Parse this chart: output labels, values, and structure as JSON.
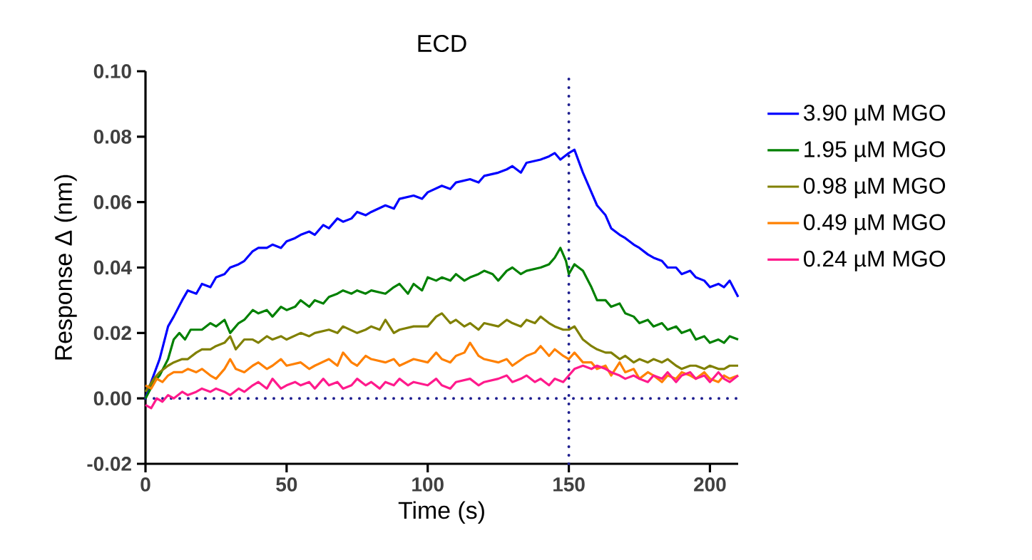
{
  "chart_data": {
    "type": "line",
    "title": "ECD",
    "xlabel": "Time (s)",
    "ylabel": "Response Δ (nm)",
    "xlim": [
      0,
      210
    ],
    "xticks": [
      0,
      50,
      100,
      150,
      200
    ],
    "ylim": [
      -0.02,
      0.1
    ],
    "yticks": [
      {
        "value": -0.02,
        "label": "-0.02"
      },
      {
        "value": 0,
        "label": "0.00"
      },
      {
        "value": 0.02,
        "label": "0.02"
      },
      {
        "value": 0.04,
        "label": "0.04"
      },
      {
        "value": 0.06,
        "label": "0.06"
      },
      {
        "value": 0.08,
        "label": "0.08"
      },
      {
        "value": 0.1,
        "label": "0.10"
      }
    ],
    "grid": false,
    "legend": "right",
    "marker": "none",
    "line_style": "solid",
    "ref_lines": [
      {
        "axis": "x",
        "value": 150,
        "color": "#1f1f8f",
        "line_style": "dotted"
      },
      {
        "axis": "y",
        "value": 0,
        "color": "#1f1f8f",
        "line_style": "dotted"
      }
    ],
    "series": [
      {
        "name": "3.90 µM MGO",
        "color": "#0000ff",
        "x": [
          0,
          2,
          5,
          8,
          10,
          13,
          15,
          18,
          20,
          23,
          25,
          28,
          30,
          33,
          35,
          38,
          40,
          43,
          45,
          48,
          50,
          53,
          55,
          58,
          60,
          63,
          65,
          68,
          70,
          73,
          75,
          78,
          80,
          85,
          88,
          90,
          95,
          98,
          100,
          105,
          108,
          110,
          115,
          118,
          120,
          125,
          128,
          130,
          133,
          135,
          140,
          143,
          145,
          147,
          150,
          152,
          155,
          158,
          160,
          163,
          165,
          168,
          170,
          173,
          175,
          178,
          180,
          183,
          185,
          188,
          190,
          193,
          195,
          198,
          200,
          203,
          205,
          207,
          210
        ],
        "values": [
          0.0,
          0.005,
          0.012,
          0.022,
          0.025,
          0.03,
          0.033,
          0.032,
          0.035,
          0.034,
          0.037,
          0.038,
          0.04,
          0.041,
          0.042,
          0.045,
          0.046,
          0.046,
          0.047,
          0.046,
          0.048,
          0.049,
          0.05,
          0.051,
          0.05,
          0.053,
          0.052,
          0.055,
          0.054,
          0.055,
          0.057,
          0.056,
          0.057,
          0.059,
          0.058,
          0.061,
          0.062,
          0.061,
          0.063,
          0.065,
          0.064,
          0.066,
          0.067,
          0.066,
          0.068,
          0.069,
          0.07,
          0.071,
          0.069,
          0.072,
          0.073,
          0.074,
          0.075,
          0.073,
          0.075,
          0.076,
          0.069,
          0.063,
          0.059,
          0.056,
          0.052,
          0.05,
          0.049,
          0.047,
          0.046,
          0.044,
          0.043,
          0.042,
          0.04,
          0.04,
          0.038,
          0.039,
          0.037,
          0.036,
          0.034,
          0.035,
          0.034,
          0.036,
          0.031
        ]
      },
      {
        "name": "1.95 µM MGO",
        "color": "#008000",
        "x": [
          0,
          3,
          5,
          8,
          10,
          12,
          14,
          16,
          20,
          23,
          25,
          28,
          30,
          33,
          35,
          38,
          40,
          43,
          45,
          48,
          50,
          53,
          55,
          58,
          60,
          63,
          65,
          68,
          70,
          73,
          75,
          78,
          80,
          85,
          88,
          90,
          93,
          95,
          98,
          100,
          103,
          105,
          108,
          110,
          113,
          115,
          118,
          120,
          123,
          125,
          128,
          130,
          133,
          135,
          140,
          143,
          145,
          147,
          149,
          150,
          152,
          155,
          158,
          160,
          163,
          165,
          168,
          170,
          173,
          175,
          178,
          180,
          183,
          185,
          188,
          190,
          193,
          195,
          198,
          200,
          203,
          205,
          207,
          210
        ],
        "values": [
          0.0,
          0.005,
          0.007,
          0.012,
          0.018,
          0.02,
          0.018,
          0.021,
          0.021,
          0.023,
          0.022,
          0.024,
          0.02,
          0.023,
          0.024,
          0.027,
          0.026,
          0.027,
          0.025,
          0.028,
          0.027,
          0.028,
          0.03,
          0.028,
          0.03,
          0.029,
          0.031,
          0.032,
          0.033,
          0.032,
          0.033,
          0.032,
          0.033,
          0.032,
          0.034,
          0.035,
          0.032,
          0.035,
          0.033,
          0.037,
          0.036,
          0.037,
          0.036,
          0.038,
          0.036,
          0.037,
          0.038,
          0.039,
          0.038,
          0.036,
          0.039,
          0.04,
          0.038,
          0.039,
          0.04,
          0.041,
          0.043,
          0.046,
          0.042,
          0.038,
          0.041,
          0.039,
          0.034,
          0.03,
          0.03,
          0.028,
          0.029,
          0.026,
          0.025,
          0.023,
          0.024,
          0.022,
          0.023,
          0.021,
          0.022,
          0.02,
          0.021,
          0.018,
          0.019,
          0.017,
          0.018,
          0.017,
          0.019,
          0.018
        ]
      },
      {
        "name": "0.98 µM MGO",
        "color": "#808000",
        "x": [
          0,
          3,
          5,
          8,
          10,
          13,
          15,
          18,
          20,
          23,
          25,
          28,
          30,
          32,
          35,
          38,
          40,
          43,
          45,
          48,
          50,
          55,
          58,
          60,
          65,
          68,
          70,
          75,
          78,
          80,
          83,
          85,
          88,
          90,
          95,
          100,
          103,
          105,
          108,
          110,
          113,
          115,
          118,
          120,
          125,
          128,
          130,
          133,
          135,
          138,
          140,
          143,
          145,
          148,
          150,
          152,
          155,
          158,
          160,
          163,
          165,
          168,
          170,
          173,
          175,
          178,
          180,
          183,
          185,
          188,
          190,
          193,
          195,
          198,
          200,
          203,
          205,
          207,
          210
        ],
        "values": [
          0.002,
          0.006,
          0.008,
          0.01,
          0.011,
          0.012,
          0.012,
          0.014,
          0.015,
          0.015,
          0.016,
          0.017,
          0.019,
          0.015,
          0.018,
          0.018,
          0.017,
          0.019,
          0.018,
          0.019,
          0.018,
          0.02,
          0.019,
          0.02,
          0.021,
          0.02,
          0.022,
          0.02,
          0.021,
          0.022,
          0.021,
          0.024,
          0.02,
          0.021,
          0.022,
          0.022,
          0.025,
          0.026,
          0.023,
          0.024,
          0.022,
          0.023,
          0.021,
          0.023,
          0.022,
          0.024,
          0.023,
          0.022,
          0.024,
          0.023,
          0.025,
          0.023,
          0.022,
          0.021,
          0.021,
          0.022,
          0.018,
          0.016,
          0.015,
          0.014,
          0.014,
          0.012,
          0.013,
          0.011,
          0.012,
          0.011,
          0.012,
          0.011,
          0.012,
          0.01,
          0.009,
          0.01,
          0.01,
          0.009,
          0.01,
          0.009,
          0.009,
          0.01,
          0.01
        ]
      },
      {
        "name": "0.49 µM MGO",
        "color": "#ff8000",
        "x": [
          0,
          2,
          4,
          6,
          8,
          10,
          13,
          15,
          18,
          20,
          23,
          25,
          28,
          30,
          32,
          35,
          38,
          40,
          43,
          45,
          48,
          50,
          55,
          58,
          60,
          65,
          68,
          70,
          73,
          75,
          78,
          80,
          85,
          88,
          90,
          95,
          100,
          103,
          105,
          108,
          110,
          113,
          115,
          118,
          120,
          125,
          128,
          130,
          135,
          138,
          140,
          143,
          145,
          148,
          150,
          152,
          155,
          158,
          160,
          163,
          165,
          168,
          170,
          173,
          175,
          178,
          180,
          183,
          185,
          188,
          190,
          193,
          195,
          198,
          200,
          203,
          205,
          207,
          210
        ],
        "values": [
          0.004,
          0.003,
          0.006,
          0.005,
          0.007,
          0.008,
          0.008,
          0.009,
          0.008,
          0.009,
          0.007,
          0.006,
          0.009,
          0.012,
          0.009,
          0.008,
          0.01,
          0.011,
          0.009,
          0.01,
          0.012,
          0.01,
          0.011,
          0.009,
          0.01,
          0.012,
          0.01,
          0.014,
          0.011,
          0.01,
          0.013,
          0.012,
          0.011,
          0.012,
          0.01,
          0.012,
          0.011,
          0.014,
          0.012,
          0.011,
          0.013,
          0.014,
          0.017,
          0.013,
          0.012,
          0.011,
          0.012,
          0.01,
          0.013,
          0.014,
          0.016,
          0.013,
          0.015,
          0.013,
          0.012,
          0.014,
          0.011,
          0.011,
          0.009,
          0.01,
          0.007,
          0.011,
          0.008,
          0.009,
          0.006,
          0.008,
          0.007,
          0.005,
          0.007,
          0.006,
          0.008,
          0.007,
          0.006,
          0.008,
          0.006,
          0.005,
          0.007,
          0.006,
          0.007
        ]
      },
      {
        "name": "0.24 µM MGO",
        "color": "#ff1a8c",
        "x": [
          0,
          2,
          4,
          6,
          8,
          10,
          13,
          15,
          18,
          20,
          23,
          25,
          28,
          30,
          33,
          35,
          38,
          40,
          43,
          45,
          48,
          50,
          53,
          55,
          58,
          60,
          63,
          65,
          68,
          70,
          73,
          75,
          78,
          80,
          83,
          85,
          88,
          90,
          93,
          95,
          100,
          103,
          105,
          108,
          110,
          115,
          118,
          120,
          125,
          128,
          130,
          133,
          135,
          138,
          140,
          143,
          145,
          148,
          150,
          152,
          155,
          158,
          160,
          163,
          165,
          168,
          170,
          173,
          175,
          178,
          180,
          183,
          185,
          188,
          190,
          193,
          195,
          198,
          200,
          203,
          205,
          207,
          210
        ],
        "values": [
          -0.002,
          -0.003,
          0.0,
          -0.001,
          0.001,
          0.0,
          0.002,
          0.001,
          0.002,
          0.003,
          0.002,
          0.003,
          0.002,
          0.001,
          0.003,
          0.002,
          0.004,
          0.005,
          0.003,
          0.006,
          0.003,
          0.004,
          0.005,
          0.004,
          0.005,
          0.003,
          0.006,
          0.004,
          0.005,
          0.003,
          0.004,
          0.006,
          0.004,
          0.005,
          0.003,
          0.005,
          0.004,
          0.006,
          0.004,
          0.005,
          0.004,
          0.006,
          0.004,
          0.003,
          0.005,
          0.006,
          0.004,
          0.005,
          0.006,
          0.007,
          0.005,
          0.006,
          0.007,
          0.005,
          0.006,
          0.004,
          0.006,
          0.005,
          0.007,
          0.009,
          0.01,
          0.009,
          0.01,
          0.009,
          0.008,
          0.007,
          0.006,
          0.007,
          0.006,
          0.005,
          0.007,
          0.006,
          0.008,
          0.005,
          0.007,
          0.008,
          0.006,
          0.007,
          0.005,
          0.008,
          0.006,
          0.005,
          0.007
        ]
      }
    ]
  }
}
